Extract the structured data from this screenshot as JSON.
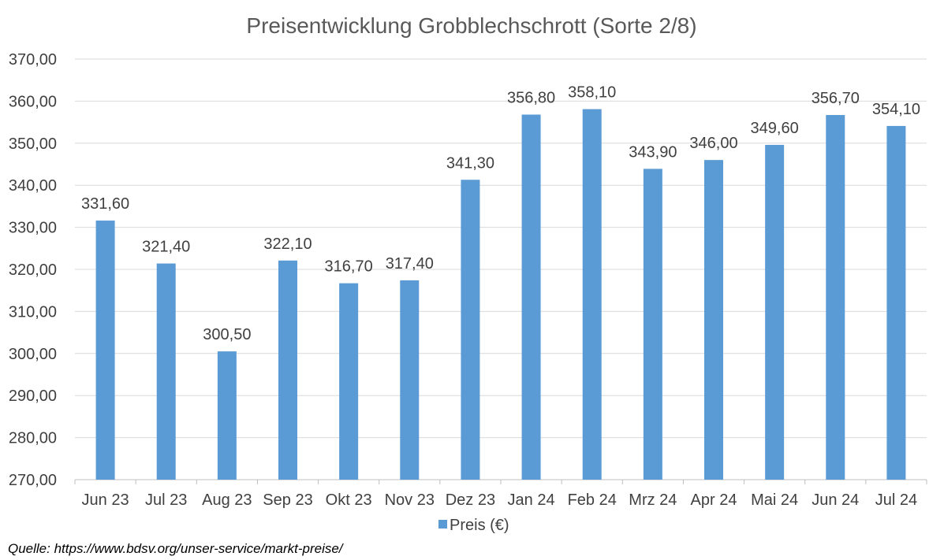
{
  "chart_data": {
    "type": "bar",
    "title": "Preisentwicklung Grobblechschrott (Sorte 2/8)",
    "categories": [
      "Jun 23",
      "Jul 23",
      "Aug 23",
      "Sep 23",
      "Okt 23",
      "Nov 23",
      "Dez 23",
      "Jan 24",
      "Feb 24",
      "Mrz 24",
      "Apr 24",
      "Mai 24",
      "Jun 24",
      "Jul 24"
    ],
    "series": [
      {
        "name": "Preis (€)",
        "values": [
          331.6,
          321.4,
          300.5,
          322.1,
          316.7,
          317.4,
          341.3,
          356.8,
          358.1,
          343.9,
          346.0,
          349.6,
          356.7,
          354.1
        ],
        "data_labels": [
          "331,60",
          "321,40",
          "300,50",
          "322,10",
          "316,70",
          "317,40",
          "341,30",
          "356,80",
          "358,10",
          "343,90",
          "346,00",
          "349,60",
          "356,70",
          "354,10"
        ],
        "color": "#5B9BD5"
      }
    ],
    "ylim": [
      270,
      370
    ],
    "yticks": [
      270,
      280,
      290,
      300,
      310,
      320,
      330,
      340,
      350,
      360,
      370
    ],
    "ytick_labels": [
      "270,00",
      "280,00",
      "290,00",
      "300,00",
      "310,00",
      "320,00",
      "330,00",
      "340,00",
      "350,00",
      "360,00",
      "370,00"
    ],
    "xlabel": "",
    "ylabel": "",
    "grid": true,
    "legend_position": "bottom",
    "gridline_color": "#D9D9D9"
  },
  "source_note": "Quelle: https://www.bdsv.org/unser-service/markt-preise/"
}
